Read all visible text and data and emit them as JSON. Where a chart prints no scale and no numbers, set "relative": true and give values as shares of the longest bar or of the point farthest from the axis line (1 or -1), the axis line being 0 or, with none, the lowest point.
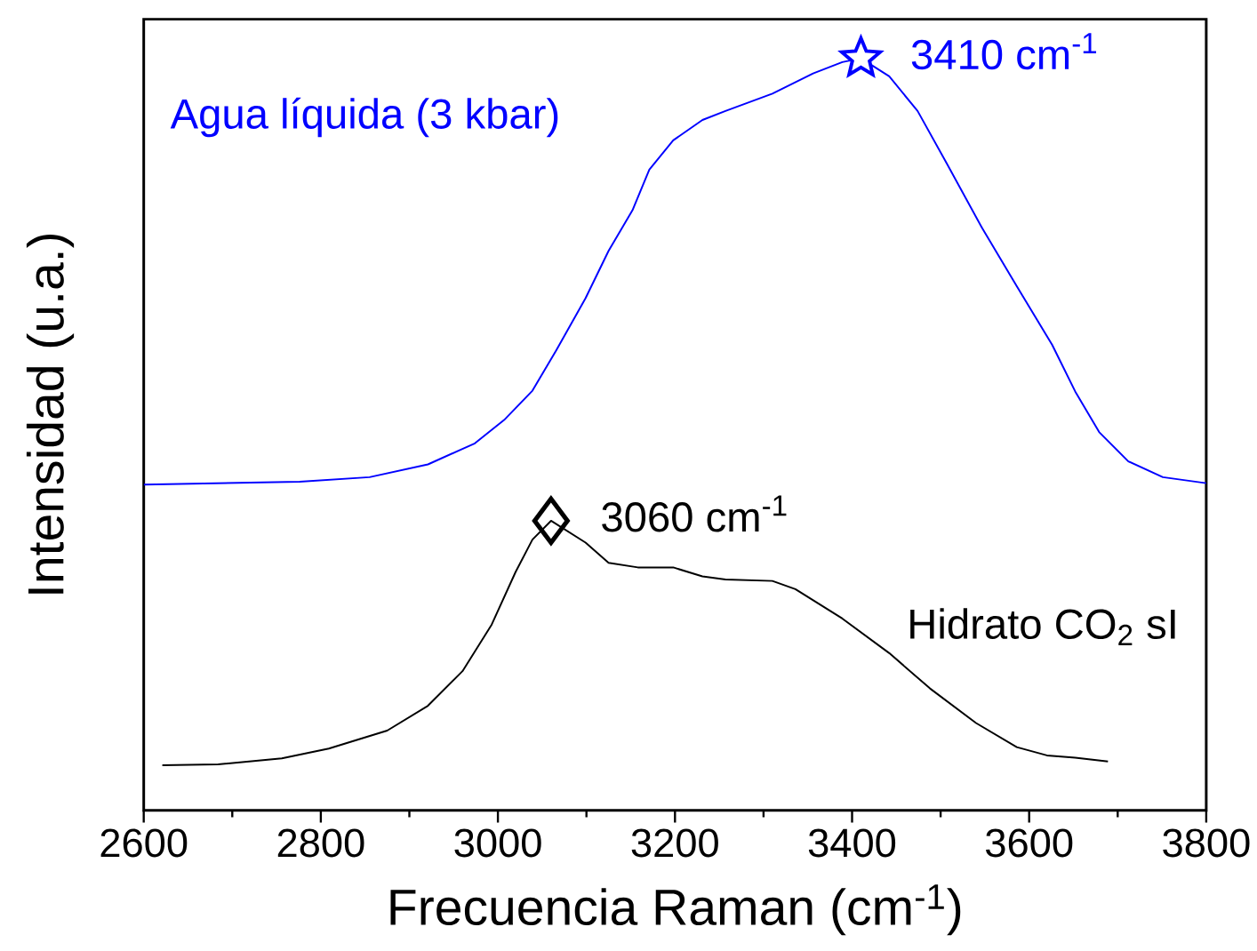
{
  "chart_data": {
    "type": "line",
    "xlabel": "Frecuencia Raman (cm$^{-1}$)",
    "ylabel": "Intensidad (u.a.)",
    "xlim": [
      2600,
      3800
    ],
    "xticks": [
      2600,
      2800,
      3000,
      3200,
      3400,
      3600,
      3800
    ],
    "relative": true,
    "tick_labels": "x",
    "series": [
      {
        "name": "Agua líquida (3 kbar)",
        "color": "#0000ff",
        "x": [
          2600,
          2776,
          2855,
          2921,
          2974,
          3007,
          3039,
          3066,
          3099,
          3125,
          3152,
          3171,
          3198,
          3231,
          3257,
          3310,
          3356,
          3389,
          3410,
          3442,
          3474,
          3507,
          3547,
          3586,
          3626,
          3652,
          3679,
          3712,
          3751,
          3800
        ],
        "values": [
          0.433,
          0.437,
          0.443,
          0.46,
          0.488,
          0.519,
          0.558,
          0.612,
          0.681,
          0.744,
          0.798,
          0.852,
          0.891,
          0.918,
          0.93,
          0.953,
          0.98,
          0.995,
          1,
          0.976,
          0.93,
          0.86,
          0.774,
          0.697,
          0.619,
          0.557,
          0.503,
          0.464,
          0.443,
          0.435
        ]
      },
      {
        "name": "Hidrato CO$_{2}$ sI",
        "color": "#000000",
        "x": [
          2621,
          2684,
          2756,
          2809,
          2875,
          2921,
          2960,
          2993,
          3020,
          3039,
          3060,
          3099,
          3125,
          3158,
          3198,
          3231,
          3257,
          3310,
          3336,
          3389,
          3442,
          3488,
          3540,
          3586,
          3620,
          3652,
          3689
        ],
        "values": [
          0.06,
          0.061,
          0.069,
          0.082,
          0.106,
          0.139,
          0.185,
          0.247,
          0.317,
          0.36,
          0.385,
          0.356,
          0.329,
          0.323,
          0.323,
          0.311,
          0.307,
          0.305,
          0.294,
          0.255,
          0.209,
          0.162,
          0.116,
          0.084,
          0.073,
          0.07,
          0.065
        ]
      },
      {
        "type": "scatter",
        "marker": "star",
        "color": "#0000ff",
        "x": [
          3410
        ],
        "values": [
          1
        ]
      },
      {
        "type": "scatter",
        "marker": "diamond",
        "color": "#000000",
        "x": [
          3060
        ],
        "values": [
          0.385
        ]
      }
    ],
    "annotations": [
      {
        "text": "3410 cm$^{-1}$",
        "x": 3410,
        "y": 1
      },
      {
        "text": "3060 cm$^{-1}$",
        "x": 3060,
        "y": 0.385
      }
    ]
  }
}
